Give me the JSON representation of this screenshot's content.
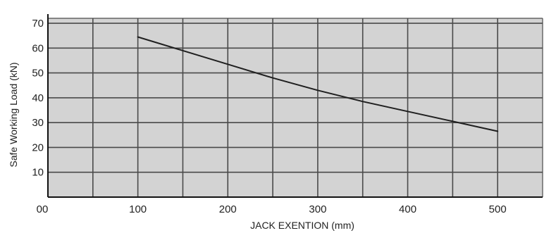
{
  "chart_data": {
    "type": "line",
    "xlabel": "JACK EXENTION (mm)",
    "ylabel": "Safe Working Load (kN)",
    "x_ticks": [
      "00",
      "100",
      "200",
      "300",
      "400",
      "500"
    ],
    "x_tick_values": [
      0,
      100,
      200,
      300,
      400,
      500
    ],
    "y_ticks": [
      "10",
      "20",
      "30",
      "40",
      "50",
      "60",
      "70"
    ],
    "y_tick_values": [
      10,
      20,
      30,
      40,
      50,
      60,
      70
    ],
    "xlim": [
      0,
      550
    ],
    "ylim": [
      0,
      72
    ],
    "grid": true,
    "colors": {
      "plot_background": "#d3d3d3",
      "grid": "#4a4a4a",
      "line": "#1f1f1f"
    },
    "series": [
      {
        "x": [
          100,
          150,
          200,
          250,
          300,
          350,
          400,
          450,
          500
        ],
        "y": [
          64.5,
          59,
          53.5,
          48,
          43,
          38.5,
          34.5,
          30.5,
          26.5
        ]
      }
    ]
  }
}
